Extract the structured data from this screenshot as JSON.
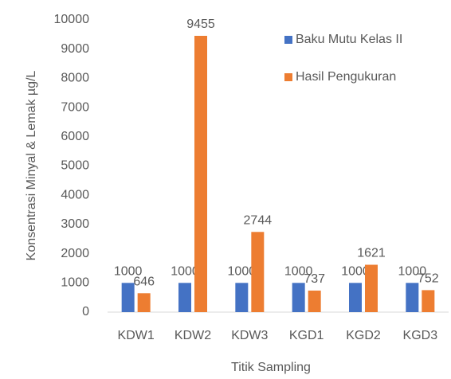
{
  "chart_data": {
    "type": "bar",
    "x_label": "Titik Sampling",
    "y_label": "Konsentrasi Minyal & Lemak µg/L",
    "categories": [
      "KDW1",
      "KDW2",
      "KDW3",
      "KGD1",
      "KGD2",
      "KGD3"
    ],
    "series": [
      {
        "name": "Baku Mutu Kelas II",
        "color": "#4472c4",
        "values": [
          1000,
          1000,
          1000,
          1000,
          1000,
          1000
        ]
      },
      {
        "name": "Hasil Pengukuran",
        "color": "#ed7d31",
        "values": [
          646,
          9455,
          2744,
          737,
          1621,
          752
        ]
      }
    ],
    "ylim": [
      0,
      10000
    ],
    "yticks": [
      0,
      1000,
      2000,
      3000,
      4000,
      5000,
      6000,
      7000,
      8000,
      9000,
      10000
    ],
    "grid": false,
    "legend": "top-right"
  }
}
